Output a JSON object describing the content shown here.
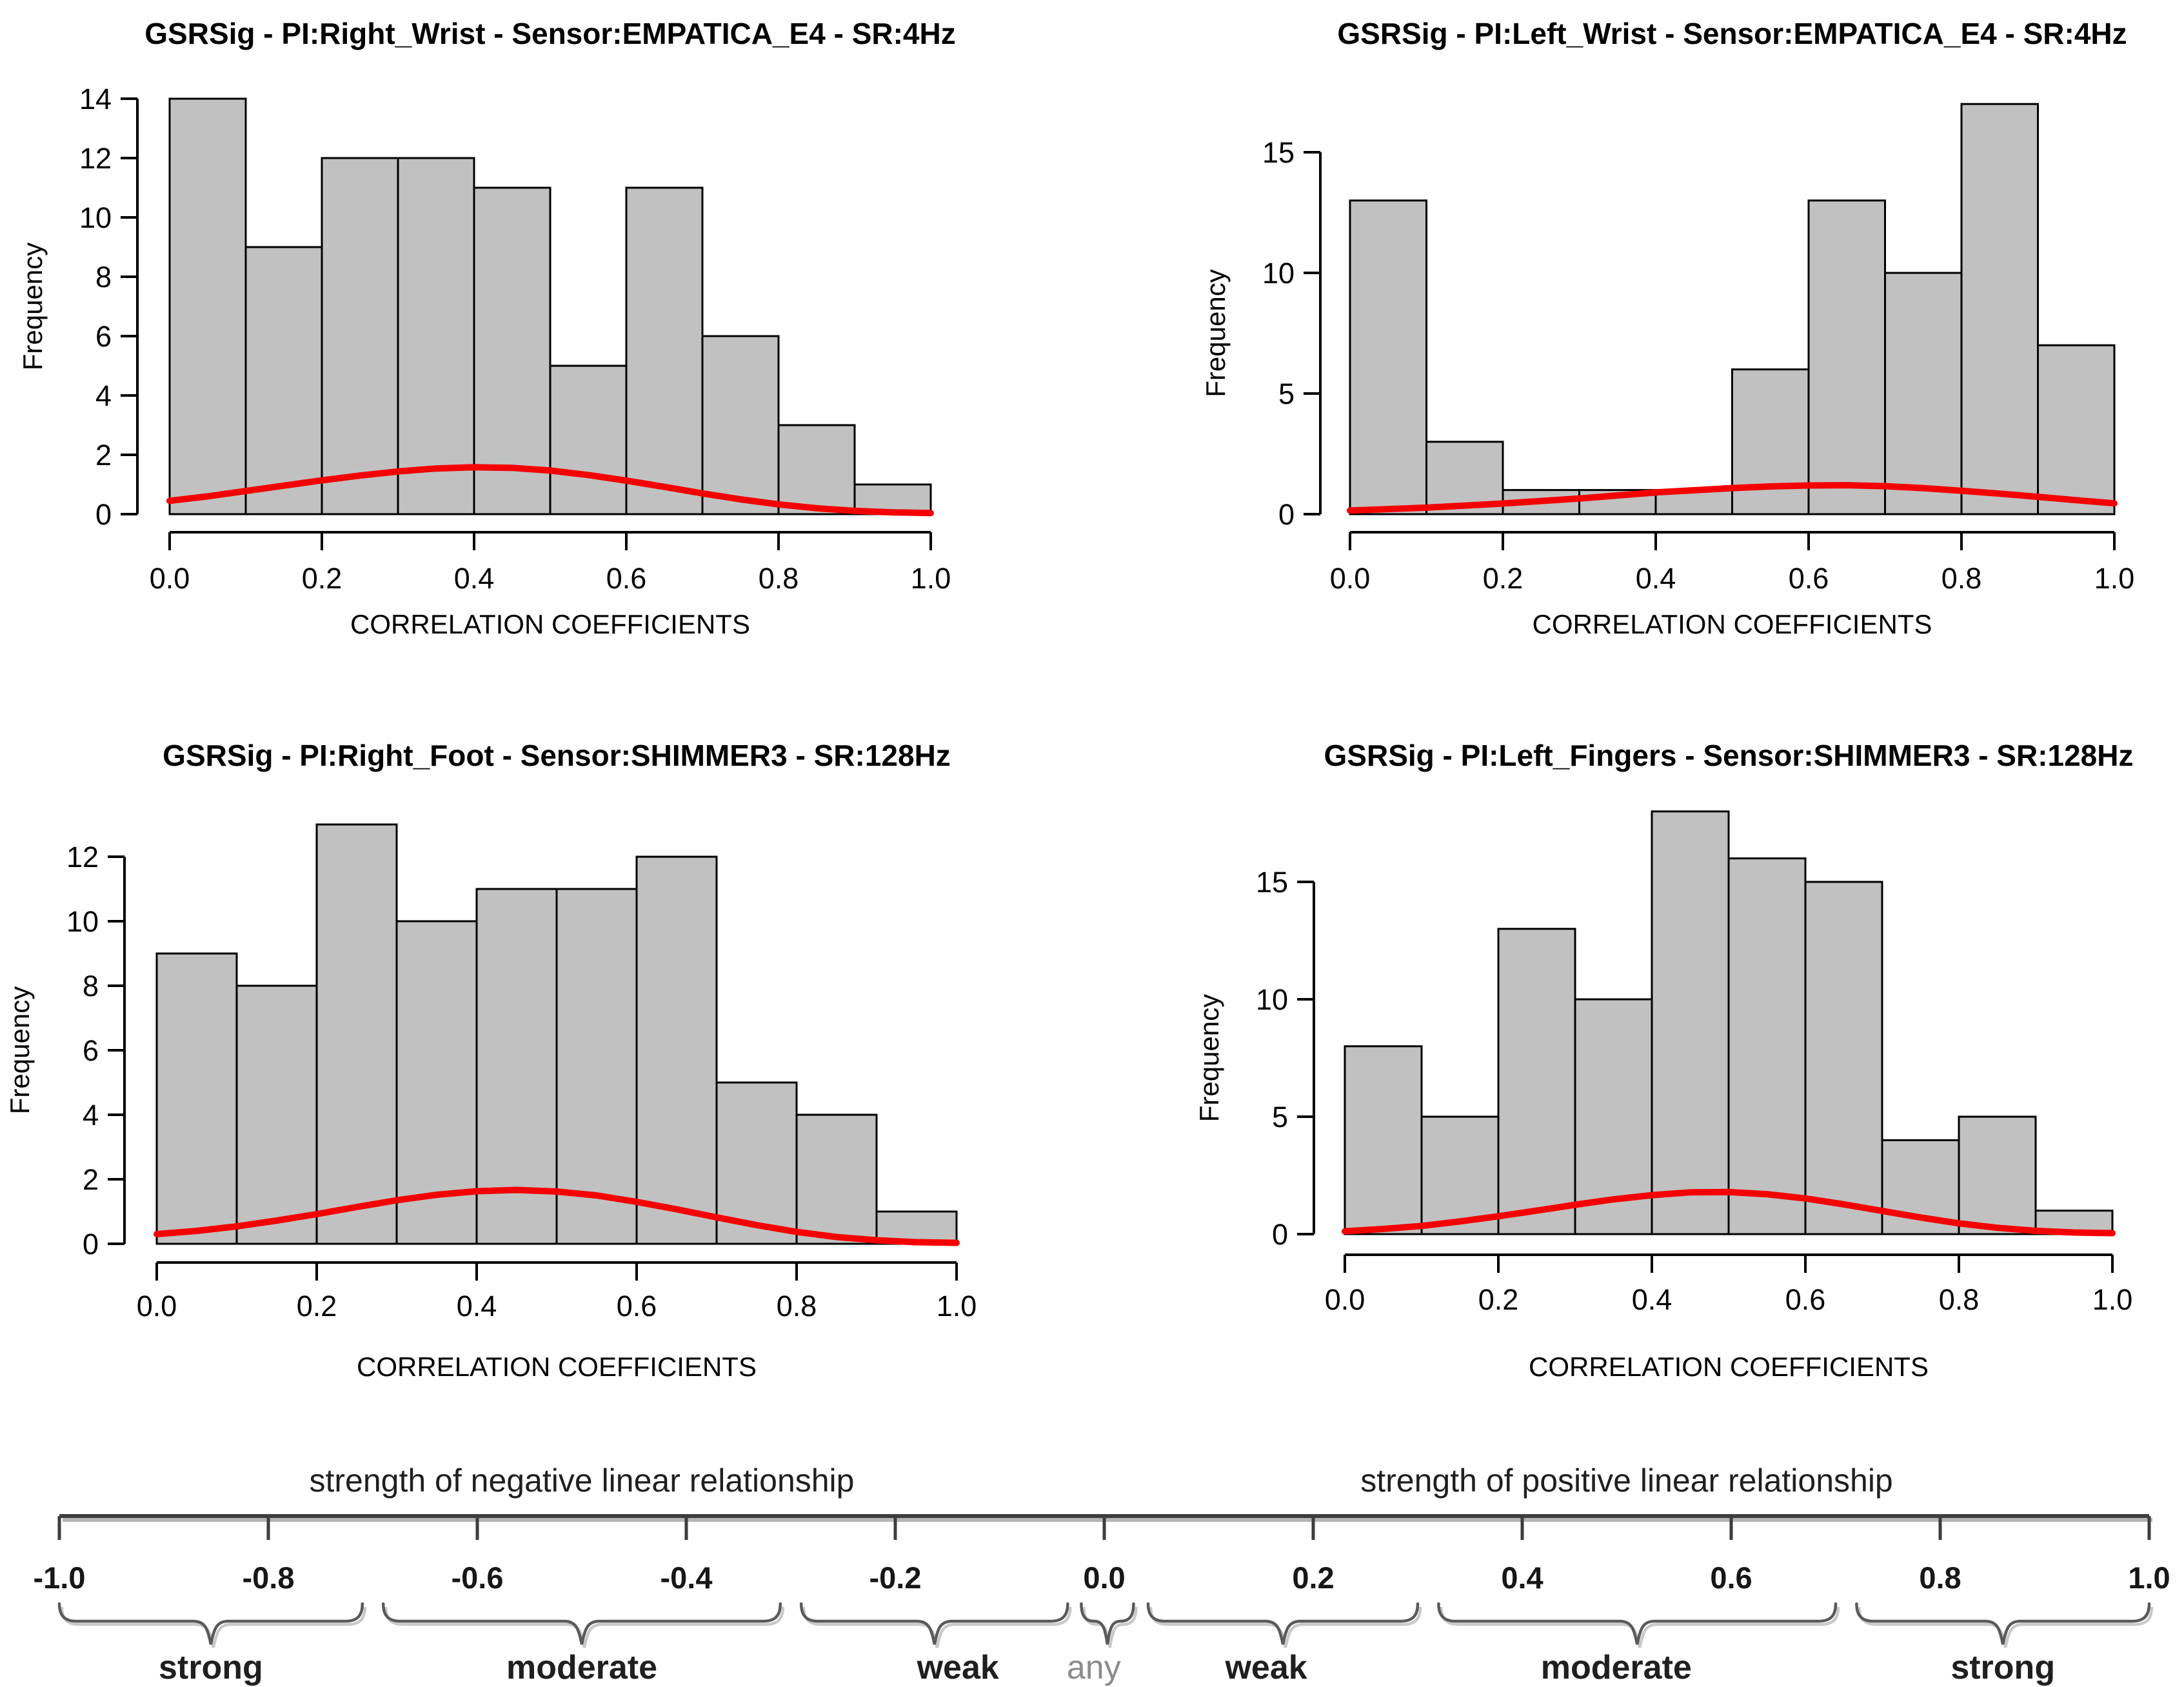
{
  "figure": {
    "xlabel": "CORRELATION COEFFICIENTS",
    "ylabel": "Frequency"
  },
  "colors": {
    "bar_fill": "#c1c1c1",
    "bar_stroke": "#000000",
    "density_curve": "#f40000",
    "axis": "#000000",
    "scale_line": "#3d3d3d",
    "scale_line_shadow": "#b5b5b5",
    "brace": "#5a5a5a",
    "brace_shadow": "#c9c9c9",
    "muted_label": "#8c8c8c"
  },
  "chart_data": [
    {
      "type": "bar",
      "id": "right-wrist",
      "title": "GSRSig - PI:Right_Wrist - Sensor:EMPATICA_E4 - SR:4Hz",
      "xlabel": "CORRELATION COEFFICIENTS",
      "ylabel": "Frequency",
      "bin_start": 0.0,
      "bin_width": 0.1,
      "values": [
        14,
        9,
        12,
        12,
        11,
        5,
        11,
        6,
        3,
        1
      ],
      "yticks": [
        0,
        2,
        4,
        6,
        8,
        10,
        12,
        14
      ],
      "xticks": [
        "0.0",
        "0.2",
        "0.4",
        "0.6",
        "0.8",
        "1.0"
      ],
      "xlim": [
        0,
        1
      ],
      "ylim": [
        0,
        14.3
      ],
      "curve": [
        [
          0,
          0.45
        ],
        [
          0.05,
          0.6
        ],
        [
          0.1,
          0.78
        ],
        [
          0.15,
          0.96
        ],
        [
          0.2,
          1.14
        ],
        [
          0.25,
          1.3
        ],
        [
          0.3,
          1.44
        ],
        [
          0.35,
          1.54
        ],
        [
          0.4,
          1.58
        ],
        [
          0.45,
          1.56
        ],
        [
          0.5,
          1.47
        ],
        [
          0.55,
          1.32
        ],
        [
          0.6,
          1.13
        ],
        [
          0.65,
          0.92
        ],
        [
          0.7,
          0.7
        ],
        [
          0.75,
          0.5
        ],
        [
          0.8,
          0.33
        ],
        [
          0.85,
          0.2
        ],
        [
          0.9,
          0.11
        ],
        [
          0.95,
          0.06
        ],
        [
          1,
          0.04
        ]
      ]
    },
    {
      "type": "bar",
      "id": "left-wrist",
      "title": "GSRSig - PI:Left_Wrist - Sensor:EMPATICA_E4 - SR:4Hz",
      "xlabel": "CORRELATION COEFFICIENTS",
      "ylabel": "Frequency",
      "bin_start": 0.0,
      "bin_width": 0.1,
      "values": [
        13,
        3,
        1,
        1,
        1,
        6,
        13,
        10,
        17,
        7
      ],
      "yticks": [
        0,
        5,
        10,
        15
      ],
      "xticks": [
        "0.0",
        "0.2",
        "0.4",
        "0.6",
        "0.8",
        "1.0"
      ],
      "xlim": [
        0,
        1
      ],
      "ylim": [
        0,
        17.6
      ],
      "curve": [
        [
          0,
          0.15
        ],
        [
          0.1,
          0.27
        ],
        [
          0.2,
          0.44
        ],
        [
          0.3,
          0.65
        ],
        [
          0.4,
          0.9
        ],
        [
          0.5,
          1.08
        ],
        [
          0.55,
          1.15
        ],
        [
          0.6,
          1.19
        ],
        [
          0.65,
          1.2
        ],
        [
          0.7,
          1.16
        ],
        [
          0.75,
          1.08
        ],
        [
          0.8,
          0.97
        ],
        [
          0.85,
          0.85
        ],
        [
          0.9,
          0.72
        ],
        [
          0.95,
          0.58
        ],
        [
          1,
          0.45
        ]
      ]
    },
    {
      "type": "bar",
      "id": "right-foot",
      "title": "GSRSig - PI:Right_Foot - Sensor:SHIMMER3 - SR:128Hz",
      "xlabel": "CORRELATION COEFFICIENTS",
      "ylabel": "Frequency",
      "bin_start": 0.0,
      "bin_width": 0.1,
      "values": [
        9,
        8,
        13,
        10,
        11,
        11,
        12,
        5,
        4,
        1
      ],
      "yticks": [
        0,
        2,
        4,
        6,
        8,
        10,
        12
      ],
      "xticks": [
        "0.0",
        "0.2",
        "0.4",
        "0.6",
        "0.8",
        "1.0"
      ],
      "xlim": [
        0,
        1
      ],
      "ylim": [
        0,
        13.3
      ],
      "curve": [
        [
          0,
          0.3
        ],
        [
          0.05,
          0.4
        ],
        [
          0.1,
          0.54
        ],
        [
          0.15,
          0.72
        ],
        [
          0.2,
          0.92
        ],
        [
          0.25,
          1.14
        ],
        [
          0.3,
          1.35
        ],
        [
          0.35,
          1.52
        ],
        [
          0.4,
          1.63
        ],
        [
          0.45,
          1.67
        ],
        [
          0.5,
          1.62
        ],
        [
          0.55,
          1.5
        ],
        [
          0.6,
          1.3
        ],
        [
          0.65,
          1.07
        ],
        [
          0.7,
          0.82
        ],
        [
          0.75,
          0.58
        ],
        [
          0.8,
          0.37
        ],
        [
          0.85,
          0.21
        ],
        [
          0.9,
          0.11
        ],
        [
          0.95,
          0.05
        ],
        [
          1,
          0.03
        ]
      ]
    },
    {
      "type": "bar",
      "id": "left-fingers",
      "title": "GSRSig - PI:Left_Fingers - Sensor:SHIMMER3 - SR:128Hz",
      "xlabel": "CORRELATION COEFFICIENTS",
      "ylabel": "Frequency",
      "bin_start": 0.0,
      "bin_width": 0.1,
      "values": [
        8,
        5,
        13,
        10,
        18,
        16,
        15,
        4,
        5,
        1
      ],
      "yticks": [
        0,
        5,
        10,
        15
      ],
      "xticks": [
        "0.0",
        "0.2",
        "0.4",
        "0.6",
        "0.8",
        "1.0"
      ],
      "xlim": [
        0,
        1
      ],
      "ylim": [
        0,
        18.1
      ],
      "curve": [
        [
          0,
          0.12
        ],
        [
          0.05,
          0.22
        ],
        [
          0.1,
          0.35
        ],
        [
          0.15,
          0.54
        ],
        [
          0.2,
          0.76
        ],
        [
          0.25,
          1.0
        ],
        [
          0.3,
          1.25
        ],
        [
          0.35,
          1.48
        ],
        [
          0.4,
          1.66
        ],
        [
          0.45,
          1.78
        ],
        [
          0.5,
          1.79
        ],
        [
          0.55,
          1.7
        ],
        [
          0.6,
          1.52
        ],
        [
          0.65,
          1.27
        ],
        [
          0.7,
          0.99
        ],
        [
          0.75,
          0.71
        ],
        [
          0.8,
          0.46
        ],
        [
          0.85,
          0.27
        ],
        [
          0.9,
          0.14
        ],
        [
          0.95,
          0.07
        ],
        [
          1,
          0.04
        ]
      ]
    }
  ],
  "scale_diagram": {
    "negative_title": "strength of negative linear relationship",
    "positive_title": "strength of positive linear relationship",
    "axis_range": [
      -1.0,
      1.0
    ],
    "ticks": [
      "-1.0",
      "-0.8",
      "-0.6",
      "-0.4",
      "-0.2",
      "0.0",
      "0.2",
      "0.4",
      "0.6",
      "0.8",
      "1.0"
    ],
    "ranges": [
      {
        "label": "strong",
        "from": -1.0,
        "to": -0.71,
        "muted": false
      },
      {
        "label": "moderate",
        "from": -0.69,
        "to": -0.31,
        "muted": false
      },
      {
        "label": "weak",
        "from": -0.29,
        "to": -0.035,
        "muted": false,
        "label_at": -0.14
      },
      {
        "label": "any",
        "from": -0.022,
        "to": 0.028,
        "muted": true,
        "label_at": -0.01
      },
      {
        "label": "weak",
        "from": 0.042,
        "to": 0.3,
        "muted": false,
        "label_at": 0.155
      },
      {
        "label": "moderate",
        "from": 0.32,
        "to": 0.7,
        "muted": false,
        "label_at": 0.49
      },
      {
        "label": "strong",
        "from": 0.72,
        "to": 1.0,
        "muted": false
      }
    ]
  }
}
